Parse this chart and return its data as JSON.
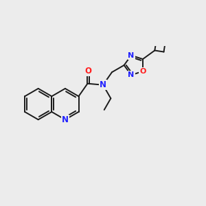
{
  "bg_color": "#ececec",
  "bond_color": "#1a1a1a",
  "N_color": "#2020ff",
  "O_color": "#ff2020",
  "bond_lw": 1.4,
  "figsize": [
    3.0,
    3.0
  ],
  "dpi": 100,
  "xlim": [
    0.0,
    9.5
  ],
  "ylim": [
    2.5,
    7.8
  ]
}
